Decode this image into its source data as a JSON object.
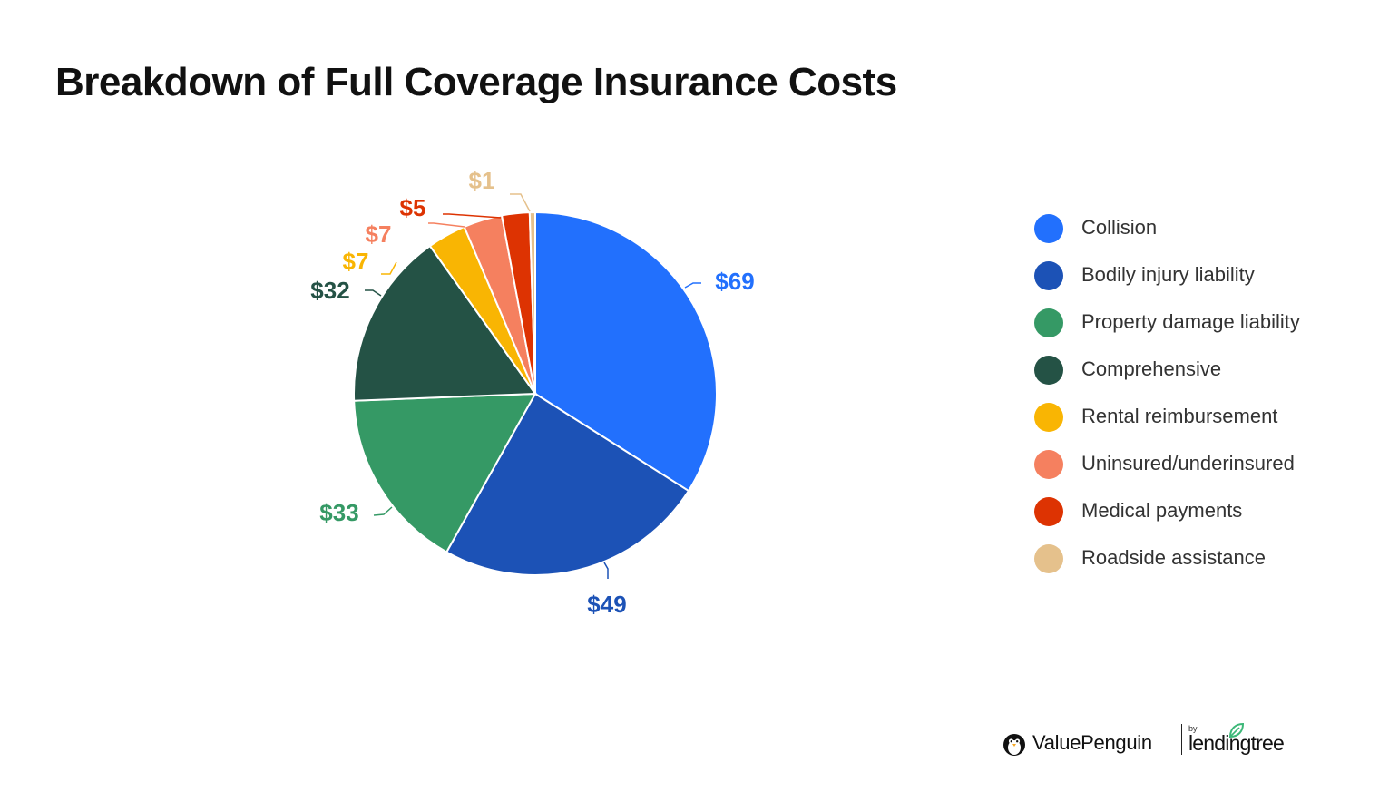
{
  "chart_data": {
    "type": "pie",
    "title": "Breakdown of Full Coverage Insurance Costs",
    "slices": [
      {
        "label": "Collision",
        "value": 69,
        "value_label": "$69",
        "color": "#2270fd"
      },
      {
        "label": "Bodily injury liability",
        "value": 49,
        "value_label": "$49",
        "color": "#1c52b6"
      },
      {
        "label": "Property damage liability",
        "value": 33,
        "value_label": "$33",
        "color": "#359965"
      },
      {
        "label": "Comprehensive",
        "value": 32,
        "value_label": "$32",
        "color": "#245245"
      },
      {
        "label": "Rental reimbursement",
        "value": 7,
        "value_label": "$7",
        "color": "#f9b503"
      },
      {
        "label": "Uninsured/underinsured",
        "value": 7,
        "value_label": "$7",
        "color": "#f5805f"
      },
      {
        "label": "Medical payments",
        "value": 5,
        "value_label": "$5",
        "color": "#dd3302"
      },
      {
        "label": "Roadside assistance",
        "value": 1,
        "value_label": "$1",
        "color": "#e5c18c"
      }
    ],
    "legend": "right"
  },
  "footer": {
    "brand": "ValuePenguin",
    "by": "by",
    "partner": "lendingtree",
    "brand_icon": "penguin-icon",
    "partner_icon": "leaf-icon",
    "partner_color": "#3cb878"
  }
}
